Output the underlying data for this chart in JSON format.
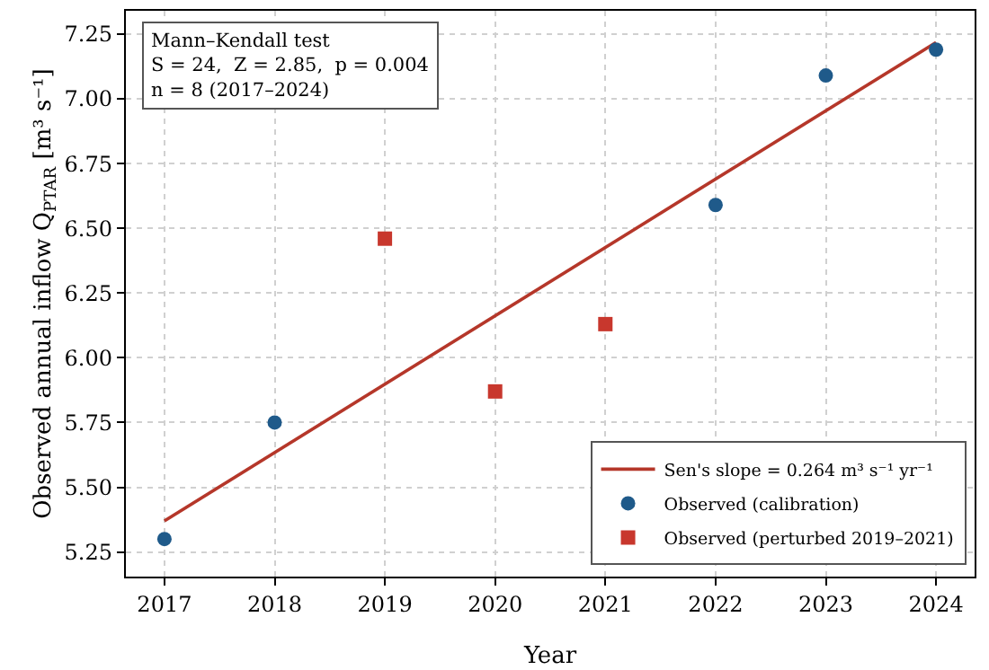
{
  "chart_data": {
    "type": "scatter",
    "xlabel": "Year",
    "ylabel": "Observed annual inflow Q$_{PTAR}$ [m³ s⁻¹]",
    "xlim": [
      2016.65,
      2024.35
    ],
    "xticks": [
      2017,
      2018,
      2019,
      2020,
      2021,
      2022,
      2023,
      2024
    ],
    "ylim": [
      5.155,
      7.34
    ],
    "yticks": [
      {
        "value": 5.25,
        "label": "5.25"
      },
      {
        "value": 5.5,
        "label": "5.50"
      },
      {
        "value": 5.75,
        "label": "5.75"
      },
      {
        "value": 6.0,
        "label": "6.00"
      },
      {
        "value": 6.25,
        "label": "6.25"
      },
      {
        "value": 6.5,
        "label": "6.50"
      },
      {
        "value": 6.75,
        "label": "6.75"
      },
      {
        "value": 7.0,
        "label": "7.00"
      },
      {
        "value": 7.25,
        "label": "7.25"
      }
    ],
    "grid": true,
    "legend": "bottom right",
    "annotations": [
      "Mann–Kendall test\nS = 24,  Z = 2.85,  p = 0.004\nn = 8 (2017–2024)"
    ],
    "series": [
      {
        "name": "Sen's slope = 0.264 m³ s⁻¹ yr⁻¹",
        "type": "line",
        "color": "#b5372a",
        "line_style": "solid",
        "marker": "none",
        "x": [
          2017,
          2024
        ],
        "values": [
          5.37,
          7.218
        ]
      },
      {
        "name": "Observed (calibration)",
        "color": "#1f5a8a",
        "marker": "circle",
        "x": [
          2017,
          2018,
          2022,
          2023,
          2024
        ],
        "values": [
          5.3,
          5.75,
          6.59,
          7.09,
          7.19
        ]
      },
      {
        "name": "Observed (perturbed 2019–2021)",
        "color": "#c8372d",
        "marker": "square",
        "x": [
          2019,
          2020,
          2021
        ],
        "values": [
          6.46,
          5.87,
          6.13
        ]
      }
    ]
  }
}
